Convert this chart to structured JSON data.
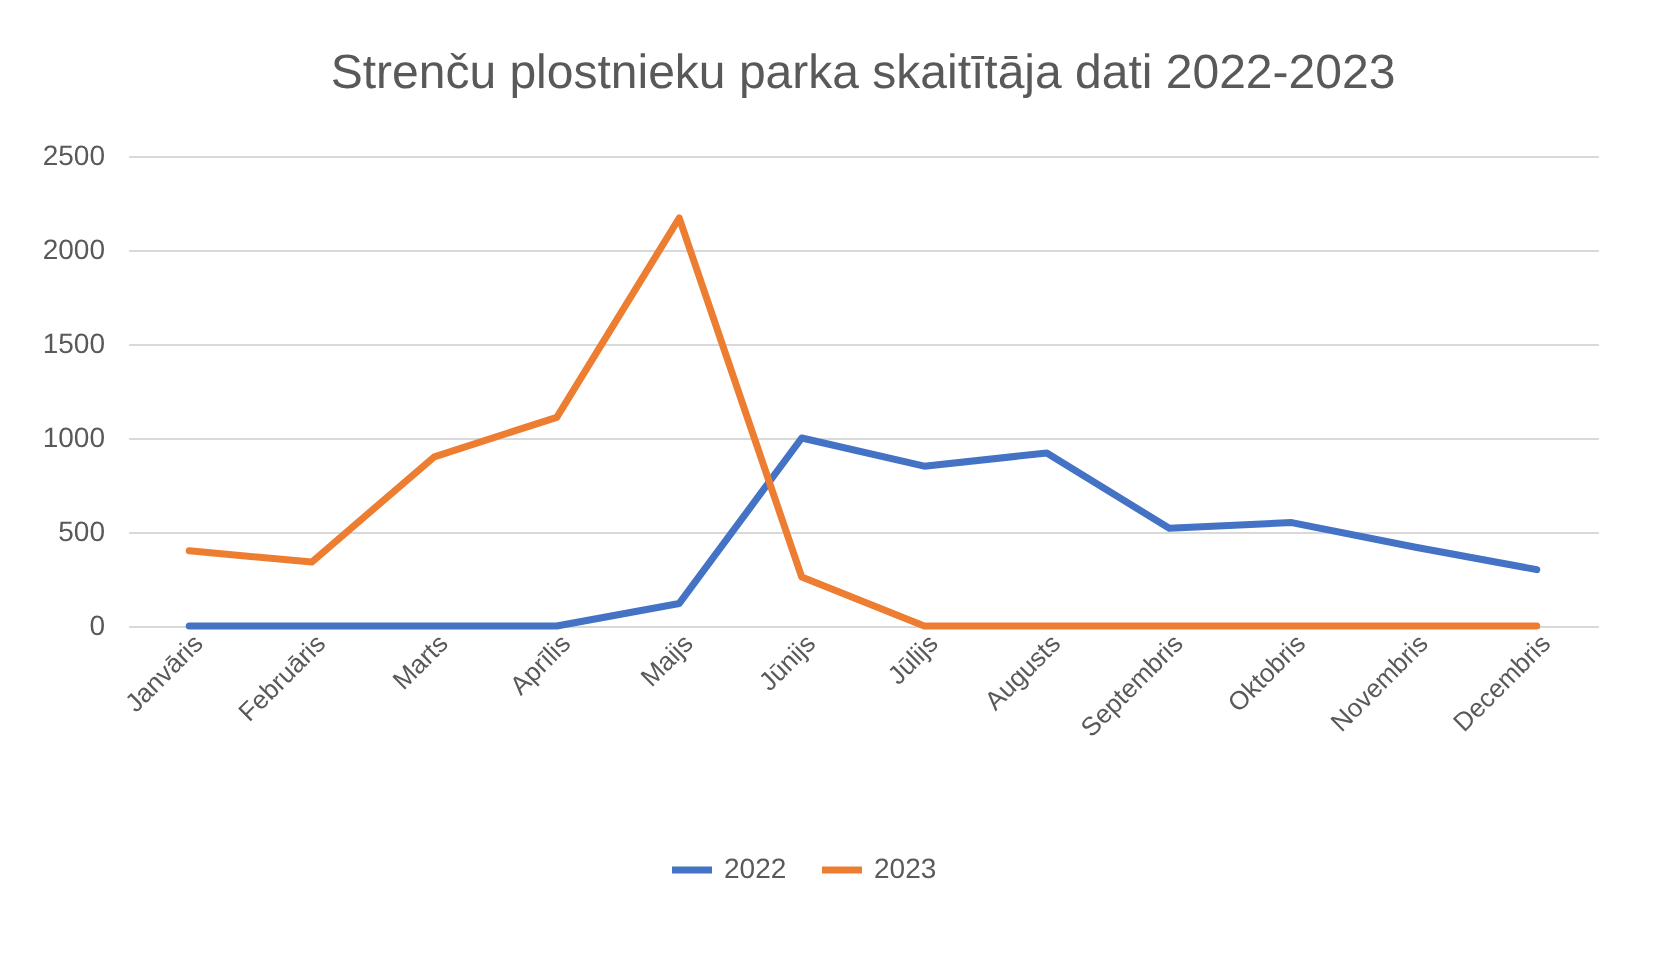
{
  "chart_data": {
    "type": "line",
    "title": "Strenču plostnieku parka skaitītāja dati 2022-2023",
    "categories": [
      "Janvāris",
      "Februāris",
      "Marts",
      "Aprīlis",
      "Maijs",
      "Jūnijs",
      "Jūlijs",
      "Augusts",
      "Septembris",
      "Oktobris",
      "Novembris",
      "Decembris"
    ],
    "series": [
      {
        "name": "2022",
        "color": "#4472c4",
        "values": [
          0,
          0,
          0,
          0,
          120,
          1000,
          850,
          920,
          520,
          550,
          420,
          300
        ]
      },
      {
        "name": "2023",
        "color": "#ed7d31",
        "values": [
          400,
          340,
          900,
          1110,
          2170,
          260,
          0,
          0,
          0,
          0,
          0,
          0
        ]
      }
    ],
    "ylim": [
      0,
      2500
    ],
    "yticks": [
      0,
      500,
      1000,
      1500,
      2000,
      2500
    ],
    "grid": "y",
    "legend": "bottom",
    "marker": "none",
    "line_style": "solid"
  }
}
